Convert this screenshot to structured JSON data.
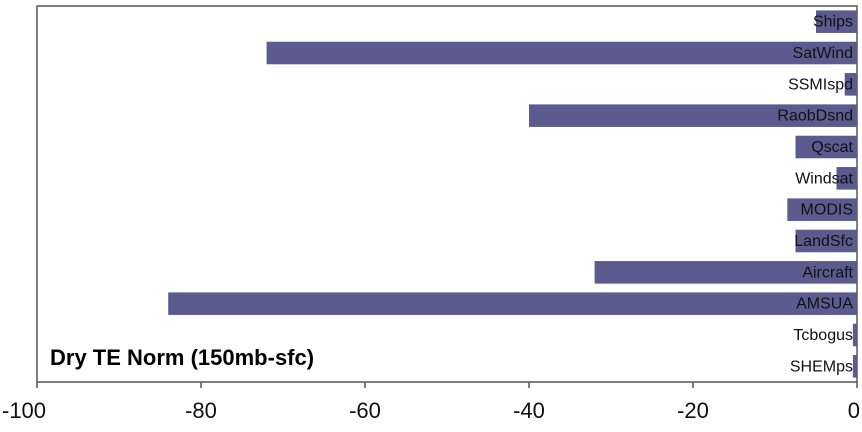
{
  "chart_data": {
    "type": "bar",
    "orientation": "horizontal",
    "title": "Dry TE Norm (150mb-sfc)",
    "categories": [
      "Ships",
      "SatWind",
      "SSMIspd",
      "RaobDsnd",
      "Qscat",
      "Windsat",
      "MODIS",
      "LandSfc",
      "Aircraft",
      "AMSUA",
      "Tcbogus",
      "SHEMps"
    ],
    "values": [
      -5,
      -72,
      -1.5,
      -40,
      -7.5,
      -2.5,
      -8.5,
      -7.5,
      -32,
      -84,
      -0.5,
      -0.5
    ],
    "xlim": [
      -100,
      0
    ],
    "xticks": [
      -100,
      -80,
      -60,
      -40,
      -20,
      0
    ],
    "xlabel": "",
    "ylabel": "",
    "bar_color": "#5b5b8f",
    "grid": false,
    "legend": false
  }
}
